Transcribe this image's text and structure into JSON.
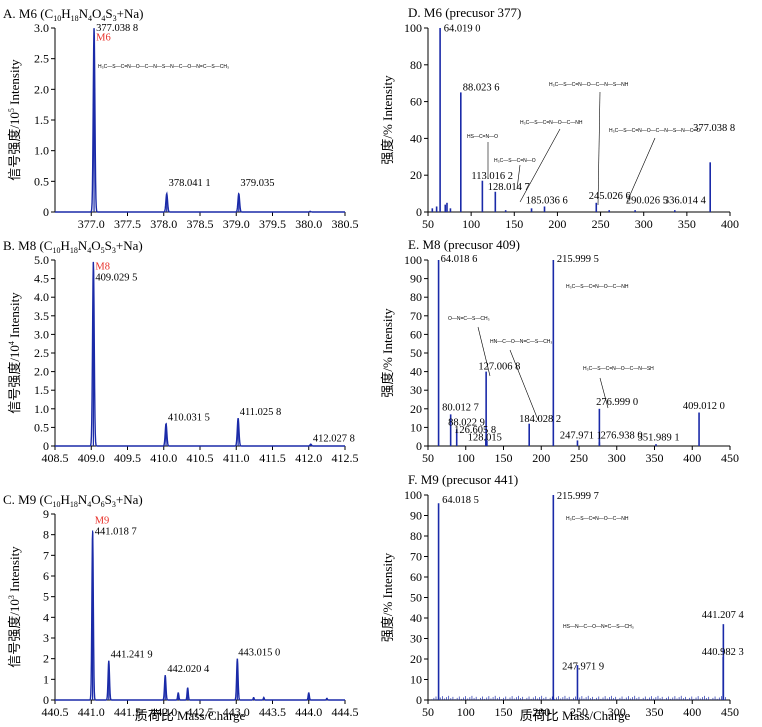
{
  "figure": {
    "x_axis_label_left": "质荷比 Mass/Charge",
    "x_axis_label_right": "质荷比 Mass/Charge"
  },
  "chart_data": [
    {
      "type": "line",
      "panel": "A",
      "title": "A. M6 (C10H18N4O4S3+Na)",
      "title_main": "A. M6 (C",
      "formula_sub": [
        "10",
        "18",
        "4",
        "4",
        "3"
      ],
      "ylabel": "信号强度/10",
      "ylabel_exp": "5",
      "ylabel_en": "Intensity",
      "xlim": [
        376.5,
        380.5
      ],
      "ylim": [
        0,
        3.0
      ],
      "xticks": [
        "377.0",
        "377.5",
        "378.0",
        "378.5",
        "379.0",
        "379.5",
        "380.0",
        "380.5"
      ],
      "xtick_values": [
        377.0,
        377.5,
        378.0,
        378.5,
        379.0,
        379.5,
        380.0,
        380.5
      ],
      "yticks": [
        "0",
        "0.5",
        "1.0",
        "1.5",
        "2.0",
        "2.5",
        "3.0"
      ],
      "ytick_values": [
        0,
        0.5,
        1.0,
        1.5,
        2.0,
        2.5,
        3.0
      ],
      "peaks": [
        {
          "x": 377.0388,
          "y": 3.0,
          "w": 0.035
        },
        {
          "x": 378.0411,
          "y": 0.3,
          "w": 0.035
        },
        {
          "x": 379.035,
          "y": 0.3,
          "w": 0.035
        },
        {
          "x": 380.02,
          "y": 0.01,
          "w": 0.03
        }
      ],
      "peak_labels": [
        {
          "text": "377.038 8",
          "x": 377.04,
          "y": 2.95
        },
        {
          "text": "378.041 1",
          "x": 378.04,
          "y": 0.42
        },
        {
          "text": "379.035",
          "x": 379.03,
          "y": 0.42
        }
      ],
      "compound_label": {
        "text": "M6",
        "x": 377.04,
        "y": 2.8
      }
    },
    {
      "type": "line",
      "panel": "B",
      "title": "B. M8 (C10H18N4O5S3+Na)",
      "title_main": "B. M8 (C",
      "formula_sub": [
        "10",
        "18",
        "4",
        "5",
        "3"
      ],
      "ylabel": "信号强度/10",
      "ylabel_exp": "4",
      "ylabel_en": "Intensity",
      "xlim": [
        408.5,
        412.5
      ],
      "ylim": [
        0,
        5.0
      ],
      "xticks": [
        "408.5",
        "409.0",
        "409.5",
        "410.0",
        "410.5",
        "411.0",
        "411.5",
        "412.0",
        "412.5"
      ],
      "xtick_values": [
        408.5,
        409.0,
        409.5,
        410.0,
        410.5,
        411.0,
        411.5,
        412.0,
        412.5
      ],
      "yticks": [
        "0",
        "0.5",
        "1.0",
        "1.5",
        "2.0",
        "2.5",
        "3.0",
        "3.5",
        "4.0",
        "4.5",
        "5.0"
      ],
      "ytick_values": [
        0,
        0.5,
        1.0,
        1.5,
        2.0,
        2.5,
        3.0,
        3.5,
        4.0,
        4.5,
        5.0
      ],
      "peaks": [
        {
          "x": 409.0295,
          "y": 4.95,
          "w": 0.035
        },
        {
          "x": 410.0315,
          "y": 0.6,
          "w": 0.035
        },
        {
          "x": 411.0258,
          "y": 0.75,
          "w": 0.035
        },
        {
          "x": 412.0278,
          "y": 0.05,
          "w": 0.03
        }
      ],
      "peak_labels": [
        {
          "text": "409.029 5",
          "x": 409.03,
          "y": 4.45
        },
        {
          "text": "410.031 5",
          "x": 410.03,
          "y": 0.68
        },
        {
          "text": "411.025 8",
          "x": 411.02,
          "y": 0.83
        },
        {
          "text": "412.027 8",
          "x": 412.03,
          "y": 0.12
        }
      ],
      "compound_label": {
        "text": "M8",
        "x": 409.03,
        "y": 4.75
      }
    },
    {
      "type": "line",
      "panel": "C",
      "title": "C. M9 (C10H18N4O6S3+Na)",
      "title_main": "C. M9 (C",
      "formula_sub": [
        "10",
        "18",
        "4",
        "6",
        "3"
      ],
      "ylabel": "信号强度/10",
      "ylabel_exp": "3",
      "ylabel_en": "Intensity",
      "xlim": [
        440.5,
        444.5
      ],
      "ylim": [
        0,
        9
      ],
      "xticks": [
        "440.5",
        "441.0",
        "441.5",
        "442.0",
        "442.5",
        "443.0",
        "443.5",
        "444.0",
        "444.5"
      ],
      "xtick_values": [
        440.5,
        441.0,
        441.5,
        442.0,
        442.5,
        443.0,
        443.5,
        444.0,
        444.5
      ],
      "yticks": [
        "0",
        "1",
        "2",
        "3",
        "4",
        "5",
        "6",
        "7",
        "8",
        "9"
      ],
      "ytick_values": [
        0,
        1,
        2,
        3,
        4,
        5,
        6,
        7,
        8,
        9
      ],
      "peaks": [
        {
          "x": 441.0187,
          "y": 8.2,
          "w": 0.03
        },
        {
          "x": 441.2419,
          "y": 1.9,
          "w": 0.03
        },
        {
          "x": 442.0204,
          "y": 1.2,
          "w": 0.03
        },
        {
          "x": 442.2,
          "y": 0.35,
          "w": 0.025
        },
        {
          "x": 442.33,
          "y": 0.6,
          "w": 0.025
        },
        {
          "x": 443.015,
          "y": 2.0,
          "w": 0.03
        },
        {
          "x": 443.24,
          "y": 0.12,
          "w": 0.02
        },
        {
          "x": 443.38,
          "y": 0.12,
          "w": 0.02
        },
        {
          "x": 444.0,
          "y": 0.35,
          "w": 0.025
        },
        {
          "x": 444.25,
          "y": 0.08,
          "w": 0.02
        }
      ],
      "peak_labels": [
        {
          "text": "441.018 7",
          "x": 441.02,
          "y": 8.0
        },
        {
          "text": "441.241 9",
          "x": 441.24,
          "y": 2.05
        },
        {
          "text": "442.020 4",
          "x": 442.02,
          "y": 1.35
        },
        {
          "text": "443.015 0",
          "x": 443.0,
          "y": 2.15
        }
      ],
      "compound_label": {
        "text": "M9",
        "x": 441.02,
        "y": 8.55
      }
    },
    {
      "type": "bar",
      "panel": "D",
      "title": "D. M6 (precusor 377)",
      "ylabel": "强度/%",
      "ylabel_en": "Intensity",
      "xlim": [
        50,
        400
      ],
      "ylim": [
        0,
        100
      ],
      "xticks": [
        "50",
        "100",
        "150",
        "200",
        "250",
        "300",
        "350",
        "400"
      ],
      "xtick_values": [
        50,
        100,
        150,
        200,
        250,
        300,
        350,
        400
      ],
      "yticks": [
        "0",
        "20",
        "40",
        "60",
        "80",
        "100"
      ],
      "ytick_values": [
        0,
        20,
        40,
        60,
        80,
        100
      ],
      "sticks": [
        {
          "x": 55,
          "y": 2
        },
        {
          "x": 60,
          "y": 3
        },
        {
          "x": 64.019,
          "y": 100
        },
        {
          "x": 70,
          "y": 4
        },
        {
          "x": 72,
          "y": 5
        },
        {
          "x": 76,
          "y": 2
        },
        {
          "x": 88.0236,
          "y": 65
        },
        {
          "x": 113.0162,
          "y": 17
        },
        {
          "x": 128.0147,
          "y": 11
        },
        {
          "x": 140,
          "y": 1
        },
        {
          "x": 170,
          "y": 2
        },
        {
          "x": 185.0366,
          "y": 3
        },
        {
          "x": 245.0266,
          "y": 5
        },
        {
          "x": 260,
          "y": 1
        },
        {
          "x": 290.0265,
          "y": 1
        },
        {
          "x": 336.0144,
          "y": 1
        },
        {
          "x": 377.0388,
          "y": 27
        }
      ],
      "peak_labels": [
        {
          "text": "64.019 0",
          "x": 66,
          "y": 98
        },
        {
          "text": "88.023 6",
          "x": 88,
          "y": 66
        },
        {
          "text": "113.016 2",
          "x": 98,
          "y": 18
        },
        {
          "text": "128.014 7",
          "x": 117,
          "y": 12
        },
        {
          "text": "185.036 6",
          "x": 161,
          "y": 4.5
        },
        {
          "text": "245.026 6",
          "x": 234,
          "y": 7
        },
        {
          "text": "290.026 5",
          "x": 277,
          "y": 4.5
        },
        {
          "text": "336.014 4",
          "x": 321,
          "y": 4.5
        },
        {
          "text": "377.038 8",
          "x": 355,
          "y": 44
        }
      ]
    },
    {
      "type": "bar",
      "panel": "E",
      "title": "E. M8 (precusor 409)",
      "ylabel": "强度/%",
      "ylabel_en": "Intensity",
      "xlim": [
        50,
        450
      ],
      "ylim": [
        0,
        100
      ],
      "xticks": [
        "50",
        "100",
        "150",
        "200",
        "250",
        "300",
        "350",
        "400",
        "450"
      ],
      "xtick_values": [
        50,
        100,
        150,
        200,
        250,
        300,
        350,
        400,
        450
      ],
      "yticks": [
        "0",
        "10",
        "20",
        "30",
        "40",
        "50",
        "60",
        "70",
        "80",
        "90",
        "100"
      ],
      "ytick_values": [
        0,
        10,
        20,
        30,
        40,
        50,
        60,
        70,
        80,
        90,
        100
      ],
      "sticks": [
        {
          "x": 64.0186,
          "y": 100
        },
        {
          "x": 80.0127,
          "y": 17
        },
        {
          "x": 88.0229,
          "y": 9
        },
        {
          "x": 126.6058,
          "y": 4
        },
        {
          "x": 127.0068,
          "y": 40
        },
        {
          "x": 128.015,
          "y": 3
        },
        {
          "x": 184.0282,
          "y": 12
        },
        {
          "x": 215.9995,
          "y": 100
        },
        {
          "x": 247.9711,
          "y": 3
        },
        {
          "x": 276.999,
          "y": 20
        },
        {
          "x": 276.938,
          "y": 2
        },
        {
          "x": 351.9891,
          "y": 1
        },
        {
          "x": 409.012,
          "y": 18
        }
      ],
      "peak_labels": [
        {
          "text": "64.018 6",
          "x": 64,
          "y": 99
        },
        {
          "text": "80.012 7",
          "x": 66,
          "y": 19
        },
        {
          "text": "88.022 9",
          "x": 74,
          "y": 11
        },
        {
          "text": "126.605 8",
          "x": 82,
          "y": 7
        },
        {
          "text": "127.006 8",
          "x": 114,
          "y": 41
        },
        {
          "text": "128.015",
          "x": 100,
          "y": 3
        },
        {
          "text": "184.028 2",
          "x": 168,
          "y": 13
        },
        {
          "text": "215.999 5",
          "x": 218,
          "y": 99
        },
        {
          "text": "247.971 1",
          "x": 222,
          "y": 4
        },
        {
          "text": "276.999 0",
          "x": 270,
          "y": 22
        },
        {
          "text": "276.938 0",
          "x": 276,
          "y": 4
        },
        {
          "text": "351.989 1",
          "x": 325,
          "y": 3
        },
        {
          "text": "409.012 0",
          "x": 385,
          "y": 20
        }
      ]
    },
    {
      "type": "bar",
      "panel": "F",
      "title": "F. M9 (precusor 441)",
      "ylabel": "强度/%",
      "ylabel_en": "Intensity",
      "xlim": [
        50,
        450
      ],
      "ylim": [
        0,
        100
      ],
      "xticks": [
        "50",
        "100",
        "150",
        "200",
        "250",
        "300",
        "350",
        "400",
        "450"
      ],
      "xtick_values": [
        50,
        100,
        150,
        200,
        250,
        300,
        350,
        400,
        450
      ],
      "yticks": [
        "0",
        "10",
        "20",
        "30",
        "40",
        "50",
        "60",
        "70",
        "80",
        "90",
        "100"
      ],
      "ytick_values": [
        0,
        10,
        20,
        30,
        40,
        50,
        60,
        70,
        80,
        90,
        100
      ],
      "sticks": [
        {
          "x": 64.0185,
          "y": 96
        },
        {
          "x": 215.9997,
          "y": 100
        },
        {
          "x": 247.9719,
          "y": 17
        },
        {
          "x": 440.9823,
          "y": 21
        },
        {
          "x": 441.2074,
          "y": 37
        }
      ],
      "noise": true,
      "peak_labels": [
        {
          "text": "64.018 5",
          "x": 66,
          "y": 96
        },
        {
          "text": "215.999 7",
          "x": 218,
          "y": 98
        },
        {
          "text": "247.971 9",
          "x": 225,
          "y": 15
        },
        {
          "text": "441.207 4",
          "x": 410,
          "y": 40
        },
        {
          "text": "440.982 3",
          "x": 410,
          "y": 22
        }
      ]
    }
  ],
  "structures": {
    "A": {
      "text": "H₃C—S—C=N—O—C—N—S—N—C—O—N=C—S—CH₃"
    },
    "D_main": {
      "text": "H₃C—S—C=N—O—C—N—S—NH"
    },
    "D_1": {
      "text": "H₃C—S—C=N—O—C—NH"
    },
    "D_2": {
      "text": "H₃C—S—C=N—O—C—N—S—N—C=O"
    },
    "D_3": {
      "text": "HS—C=N—O"
    },
    "D_4": {
      "text": "H₃C—S—C=N—O"
    },
    "E_1": {
      "text": "H₃C—S—C=N—O—C—NH"
    },
    "E_2": {
      "text": "O—N=C—S—CH₃"
    },
    "E_3": {
      "text": "HN—C—O—N=C—S—CH₃"
    },
    "E_4": {
      "text": "H₃C—S—C=N—O—C—N—SH"
    },
    "F_1": {
      "text": "H₃C—S—C=N—O—C—NH"
    },
    "F_2": {
      "text": "HS—N—C—O—N=C—S—CH₃"
    }
  }
}
